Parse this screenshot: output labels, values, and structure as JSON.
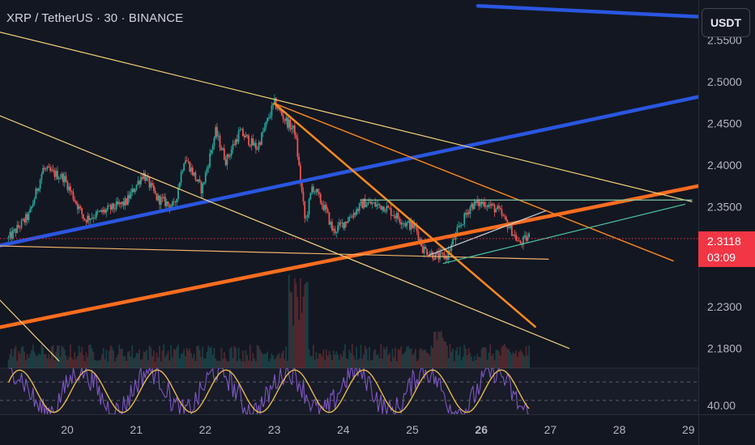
{
  "header": {
    "title": "XRP / TetherUS · 30 · BINANCE"
  },
  "currency_button": {
    "label": "USDT"
  },
  "price_tag": {
    "price": "2.3118",
    "countdown": "03:09"
  },
  "theme": {
    "background": "#131722",
    "up": "#26a69a",
    "down": "#ef5350",
    "blue_line": "#2a56e0",
    "orange_line": "#ff6d1f",
    "oscillator": "#7e57c2",
    "signal": "#e8b84a"
  },
  "chart_data": [
    {
      "type": "candlestick",
      "symbol": "XRP / TetherUS",
      "interval": "30",
      "exchange": "BINANCE",
      "y_axis": {
        "ticks": [
          "2.5500",
          "2.5000",
          "2.4500",
          "2.4000",
          "2.3500",
          "2.2300",
          "2.1800"
        ],
        "range": [
          2.165,
          2.575
        ]
      },
      "x_axis": {
        "ticks": [
          "20",
          "21",
          "22",
          "23",
          "24",
          "25",
          "26",
          "27",
          "28",
          "29"
        ],
        "bold_tick": "26"
      },
      "current_price": 2.3118,
      "close_path": [
        {
          "day": 19.15,
          "price": 2.312
        },
        {
          "day": 19.45,
          "price": 2.34
        },
        {
          "day": 19.65,
          "price": 2.395
        },
        {
          "day": 19.95,
          "price": 2.385
        },
        {
          "day": 20.25,
          "price": 2.335
        },
        {
          "day": 20.55,
          "price": 2.345
        },
        {
          "day": 20.85,
          "price": 2.355
        },
        {
          "day": 21.1,
          "price": 2.39
        },
        {
          "day": 21.3,
          "price": 2.36
        },
        {
          "day": 21.55,
          "price": 2.35
        },
        {
          "day": 21.7,
          "price": 2.41
        },
        {
          "day": 21.95,
          "price": 2.37
        },
        {
          "day": 22.15,
          "price": 2.44
        },
        {
          "day": 22.3,
          "price": 2.405
        },
        {
          "day": 22.5,
          "price": 2.44
        },
        {
          "day": 22.75,
          "price": 2.42
        },
        {
          "day": 23.0,
          "price": 2.475
        },
        {
          "day": 23.15,
          "price": 2.455
        },
        {
          "day": 23.3,
          "price": 2.44
        },
        {
          "day": 23.45,
          "price": 2.33
        },
        {
          "day": 23.55,
          "price": 2.375
        },
        {
          "day": 23.75,
          "price": 2.345
        },
        {
          "day": 23.85,
          "price": 2.32
        },
        {
          "day": 24.0,
          "price": 2.33
        },
        {
          "day": 24.3,
          "price": 2.355
        },
        {
          "day": 24.6,
          "price": 2.35
        },
        {
          "day": 24.9,
          "price": 2.33
        },
        {
          "day": 25.05,
          "price": 2.325
        },
        {
          "day": 25.15,
          "price": 2.3
        },
        {
          "day": 25.35,
          "price": 2.29
        },
        {
          "day": 25.5,
          "price": 2.29
        },
        {
          "day": 25.65,
          "price": 2.32
        },
        {
          "day": 25.85,
          "price": 2.352
        },
        {
          "day": 26.05,
          "price": 2.355
        },
        {
          "day": 26.25,
          "price": 2.345
        },
        {
          "day": 26.45,
          "price": 2.32
        },
        {
          "day": 26.55,
          "price": 2.305
        },
        {
          "day": 26.7,
          "price": 2.315
        }
      ],
      "trend_lines": [
        {
          "color": "#2a56e0",
          "from": {
            "day": 19.0,
            "price": 2.303
          },
          "to": {
            "day": 29.15,
            "price": 2.482
          }
        },
        {
          "color": "#2a56e0",
          "from": {
            "day": 25.95,
            "price": 2.591
          },
          "to": {
            "day": 29.15,
            "price": 2.578
          }
        },
        {
          "color": "#ff6d1f",
          "from": {
            "day": 19.0,
            "price": 2.205
          },
          "to": {
            "day": 29.15,
            "price": 2.375
          }
        },
        {
          "color": "#ff8a1f",
          "from": {
            "day": 23.0,
            "price": 2.474
          },
          "to": {
            "day": 26.78,
            "price": 2.206
          }
        },
        {
          "color": "#ff8a1f",
          "from": {
            "day": 23.0,
            "price": 2.474
          },
          "to": {
            "day": 28.78,
            "price": 2.285
          }
        },
        {
          "color": "#f0b26a",
          "from": {
            "day": 19.0,
            "price": 2.303
          },
          "to": {
            "day": 26.97,
            "price": 2.287
          }
        },
        {
          "color": "#f5d27a",
          "from": {
            "day": 19.0,
            "price": 2.56
          },
          "to": {
            "day": 29.05,
            "price": 2.356
          }
        },
        {
          "color": "#f5d27a",
          "from": {
            "day": 19.0,
            "price": 2.46
          },
          "to": {
            "day": 27.27,
            "price": 2.18
          }
        },
        {
          "color": "#f5d27a",
          "from": {
            "day": 19.0,
            "price": 2.24
          },
          "to": {
            "day": 19.88,
            "price": 2.165
          }
        },
        {
          "color": "#7fc9a0",
          "from": {
            "day": 24.25,
            "price": 2.358
          },
          "to": {
            "day": 29.05,
            "price": 2.358
          }
        },
        {
          "color": "#4fc3a1",
          "from": {
            "day": 25.45,
            "price": 2.282
          },
          "to": {
            "day": 28.95,
            "price": 2.353
          }
        },
        {
          "color": "#c8cdd6",
          "from": {
            "day": 25.25,
            "price": 2.292
          },
          "to": {
            "day": 26.93,
            "price": 2.345
          }
        }
      ]
    },
    {
      "type": "line",
      "name": "oscillator",
      "y_axis": {
        "ticks": [
          "40.00"
        ]
      },
      "series": [
        {
          "color": "#7e57c2"
        },
        {
          "color": "#e8b84a"
        }
      ]
    }
  ]
}
